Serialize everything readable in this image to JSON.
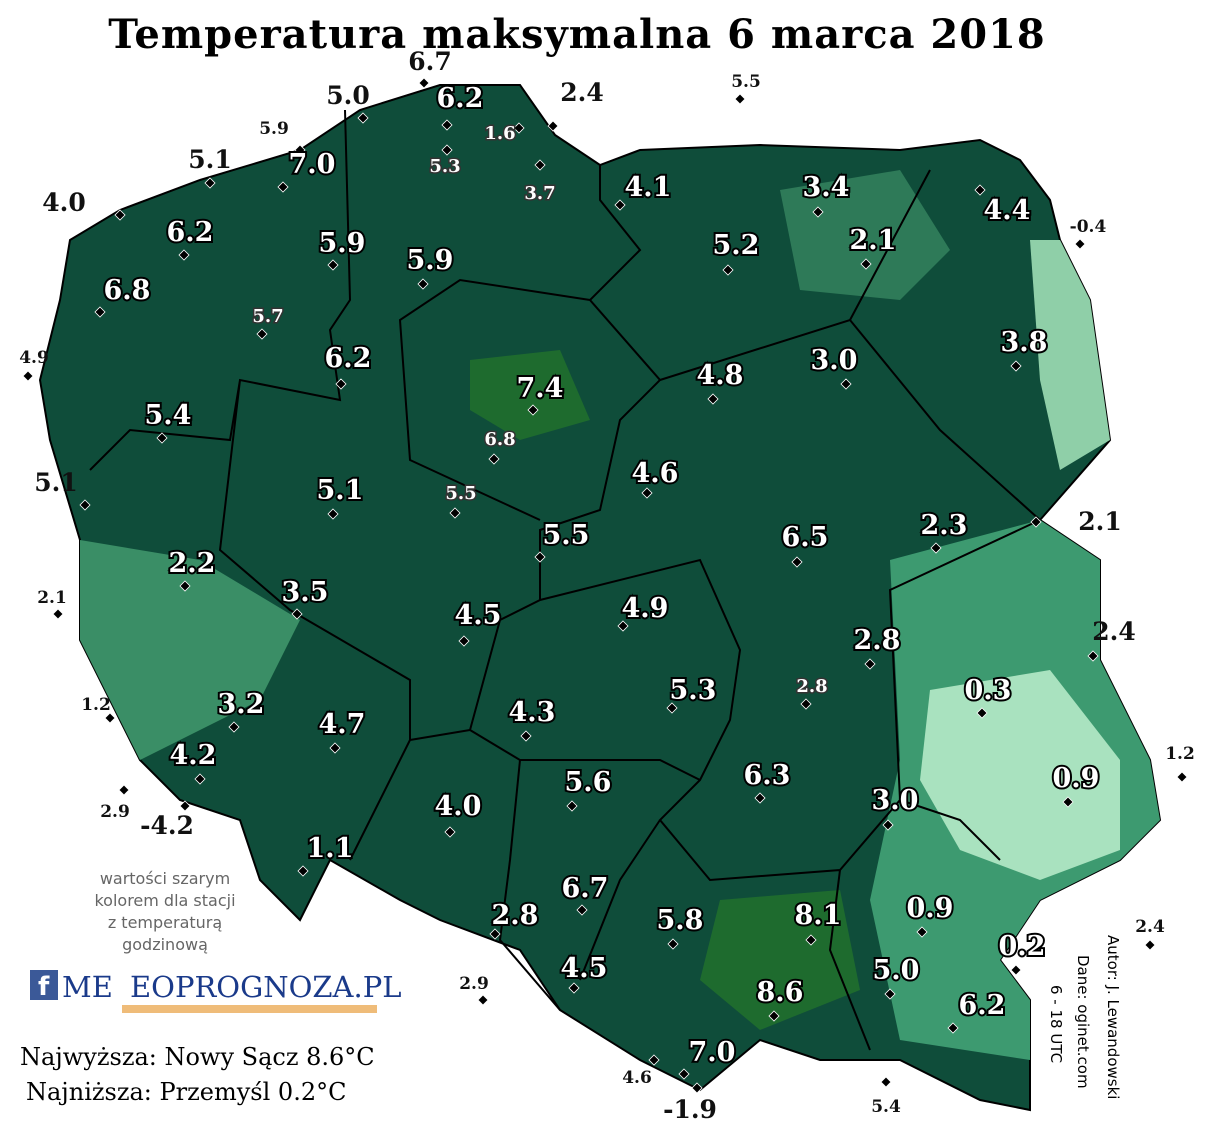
{
  "title": "Temperatura maksymalna 6 marca 2018",
  "stations": [
    "6.7",
    "5.0",
    "6.2",
    "1.6",
    "2.4",
    "5.5",
    "5.9",
    "5.3",
    "7.0",
    "5.1",
    "3.7",
    "4.1",
    "3.4",
    "4.4",
    "-0.4",
    "4.0",
    "6.2",
    "5.9",
    "2.1",
    "5.2",
    "5.9",
    "6.8",
    "5.7",
    "3.8",
    "4.9",
    "6.2",
    "3.0",
    "7.4",
    "4.8",
    "5.4",
    "6.8",
    "4.6",
    "5.1",
    "5.1",
    "5.5",
    "2.1",
    "5.5",
    "6.5",
    "2.3",
    "2.2",
    "2.1",
    "3.5",
    "4.9",
    "4.5",
    "2.4",
    "2.8",
    "0.3",
    "5.3",
    "2.8",
    "1.2",
    "3.2",
    "4.3",
    "4.7",
    "4.2",
    "1.2",
    "0.9",
    "6.3",
    "5.6",
    "2.9",
    "-4.2",
    "4.0",
    "3.0",
    "1.1",
    "6.7",
    "2.8",
    "5.8",
    "8.1",
    "0.9",
    "2.4",
    "0.2",
    "5.0",
    "2.9",
    "4.5",
    "8.6",
    "6.2",
    "7.0",
    "4.6",
    "5.4",
    "-1.9"
  ],
  "note": [
    "wartości szarym",
    "kolorem dla stacji",
    "z temperaturą",
    "godzinową"
  ],
  "logo": {
    "left": "ME",
    "right": "EOPROGNOZA.PL"
  },
  "summary": {
    "highest": "Najwyższa: Nowy Sącz 8.6°C",
    "lowest": "Najniższa: Przemyśl 0.2°C"
  },
  "credits": [
    "Autor: J. Lewandowski",
    "Dane: oginet.com",
    "6 - 18 UTC"
  ]
}
